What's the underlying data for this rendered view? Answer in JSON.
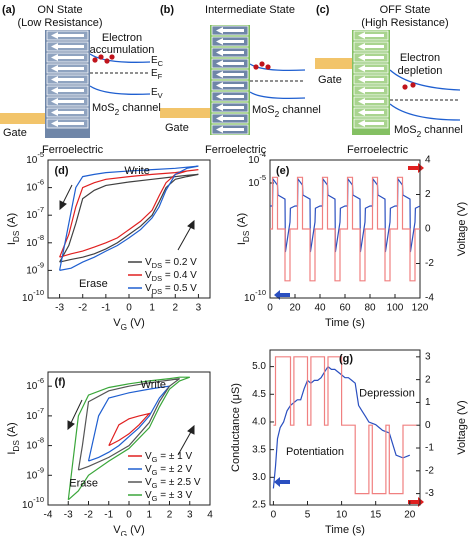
{
  "diagrams": [
    {
      "label": "(a)",
      "title": [
        "ON State",
        "(Low Resistance)"
      ],
      "note": [
        "Electron",
        "accumulation"
      ],
      "levels": [
        [
          "E",
          "C"
        ],
        [
          "E",
          "F"
        ],
        [
          "E",
          "V"
        ]
      ],
      "channel": [
        "MoS",
        "2",
        " channel"
      ],
      "gate": "Gate",
      "layer": "Ferroelectric"
    },
    {
      "label": "(b)",
      "title": [
        "Intermediate State"
      ],
      "channel": [
        "MoS",
        "2",
        " channel"
      ],
      "gate": "Gate",
      "layer": "Ferroelectric"
    },
    {
      "label": "(c)",
      "title": [
        "OFF State",
        "(High Resistance)"
      ],
      "note": [
        "Electron",
        "depletion"
      ],
      "channel": [
        "MoS",
        "2",
        " channel"
      ],
      "gate": "Gate",
      "layer": "Ferroelectric"
    }
  ],
  "chart_data": [
    {
      "type": "line",
      "label": "(d)",
      "x_label": [
        "V",
        "G",
        " (V)"
      ],
      "y_label": [
        "I",
        "DS",
        " (A)"
      ],
      "xlim": [
        -3.5,
        3.5
      ],
      "xticks": [
        -3,
        -2,
        -1,
        0,
        1,
        2,
        3
      ],
      "ylim": [
        1e-10,
        1e-05
      ],
      "yscale": "log",
      "yticks": [
        {
          "value": 1e-10,
          "label": [
            "10",
            "-10"
          ]
        },
        {
          "value": 1e-09,
          "label": [
            "10",
            "-9"
          ]
        },
        {
          "value": 1e-08,
          "label": [
            "10",
            "-8"
          ]
        },
        {
          "value": 1e-07,
          "label": [
            "10",
            "-7"
          ]
        },
        {
          "value": 1e-06,
          "label": [
            "10",
            "-6"
          ]
        },
        {
          "value": 1e-05,
          "label": [
            "10",
            "-5"
          ]
        }
      ],
      "annotations": [
        "Write",
        "Erase"
      ],
      "legend": "lower right",
      "series": [
        {
          "name": [
            "V",
            "DS",
            " = 0.2 V"
          ],
          "color": "#404040",
          "x": [
            -3,
            -2.5,
            -2,
            -1.5,
            -1,
            -0.5,
            0,
            0.5,
            1,
            1.3,
            1.6,
            2,
            2.5,
            3,
            2.5,
            2,
            1,
            0,
            -1,
            -1.5,
            -2,
            -2.3,
            -2.6,
            -3
          ],
          "values": [
            2e-09,
            2.5e-09,
            3e-09,
            4e-09,
            6e-09,
            1e-08,
            2e-08,
            4e-08,
            1e-07,
            3e-07,
            1e-06,
            2e-06,
            2.5e-06,
            3e-06,
            2.8e-06,
            2.5e-06,
            2e-06,
            1.6e-06,
            1.2e-06,
            8e-07,
            4e-07,
            5e-08,
            8e-09,
            2e-09
          ]
        },
        {
          "name": [
            "V",
            "DS",
            " = 0.4 V"
          ],
          "color": "#e02020",
          "x": [
            -3,
            -2.5,
            -2,
            -1.5,
            -1,
            -0.5,
            0,
            0.5,
            1,
            1.3,
            1.6,
            2,
            2.5,
            3,
            2.5,
            2,
            1,
            0,
            -1,
            -1.5,
            -2,
            -2.3,
            -2.6,
            -3
          ],
          "values": [
            3e-09,
            4e-09,
            5e-09,
            7e-09,
            1e-08,
            1.5e-08,
            3e-08,
            6e-08,
            1.5e-07,
            5e-07,
            1.5e-06,
            3e-06,
            4e-06,
            4.5e-06,
            4e-06,
            3.5e-06,
            3e-06,
            2.5e-06,
            2e-06,
            1.5e-06,
            1e-06,
            2e-07,
            2e-08,
            3e-09
          ]
        },
        {
          "name": [
            "V",
            "DS",
            " = 0.5 V"
          ],
          "color": "#1f5fd0",
          "x": [
            -3,
            -2.5,
            -2,
            -1.5,
            -1,
            -0.5,
            0,
            0.5,
            1,
            1.3,
            1.6,
            2,
            2.5,
            3,
            2.5,
            2,
            1,
            0,
            -1,
            -1.5,
            -2,
            -2.3,
            -2.6,
            -3
          ],
          "values": [
            1e-09,
            1.2e-09,
            2e-09,
            3e-09,
            5e-09,
            8e-09,
            1.5e-08,
            3e-08,
            8e-08,
            2e-07,
            8e-07,
            3e-06,
            5e-06,
            6e-06,
            5.5e-06,
            5e-06,
            4.5e-06,
            4e-06,
            3.5e-06,
            3e-06,
            2.5e-06,
            1e-06,
            5e-08,
            1e-09
          ]
        }
      ]
    },
    {
      "type": "line",
      "label": "(e)",
      "x_label": "Time (s)",
      "y_label": [
        "I",
        "DS",
        " (A)"
      ],
      "y2_label": "Voltage (V)",
      "xlim": [
        0,
        120
      ],
      "xticks": [
        0,
        20,
        40,
        60,
        80,
        100,
        120
      ],
      "ylim": [
        1e-10,
        0.0001
      ],
      "yscale": "log",
      "yticks": [
        {
          "value": 1e-10,
          "label": [
            "10",
            "-10"
          ]
        },
        {
          "value": 1e-05,
          "label": [
            "10",
            "-5"
          ]
        },
        {
          "value": 0.0001,
          "label": [
            "10",
            "-4"
          ]
        }
      ],
      "y2lim": [
        -4,
        4
      ],
      "y2ticks": [
        -4,
        -2,
        0,
        2,
        4
      ],
      "series": [
        {
          "color": "#2a4fc0",
          "x": [
            0,
            2,
            2.3,
            6,
            6.3,
            12,
            12.3,
            16,
            16.3,
            20,
            22,
            22.3,
            26,
            26.3,
            32,
            32.3,
            36,
            36.3,
            40,
            42,
            42.3,
            46,
            46.3,
            52,
            52.3,
            56,
            56.3,
            60,
            62,
            62.3,
            66,
            66.3,
            72,
            72.3,
            76,
            76.3,
            80,
            82,
            82.3,
            86,
            86.3,
            92,
            92.3,
            96,
            96.3,
            100,
            102,
            102.3,
            106,
            106.3,
            112,
            112.3,
            116,
            116.3,
            120
          ],
          "values": [
            1e-06,
            1e-06,
            1.5e-05,
            8e-06,
            3e-06,
            2e-06,
            1e-08,
            2e-07,
            8e-07,
            1e-06,
            1e-06,
            1.5e-05,
            8e-06,
            3e-06,
            2e-06,
            1e-08,
            2e-07,
            8e-07,
            1e-06,
            1e-06,
            1.5e-05,
            8e-06,
            3e-06,
            2e-06,
            1e-08,
            2e-07,
            8e-07,
            1e-06,
            1e-06,
            1.5e-05,
            8e-06,
            3e-06,
            2e-06,
            1e-08,
            2e-07,
            8e-07,
            1e-06,
            1e-06,
            1.5e-05,
            8e-06,
            3e-06,
            2e-06,
            1e-08,
            2e-07,
            8e-07,
            1e-06,
            1e-06,
            1.5e-05,
            8e-06,
            3e-06,
            2e-06,
            1e-08,
            2e-07,
            8e-07,
            1e-06
          ]
        },
        {
          "color": "#f08080",
          "axis": "y2",
          "x": [
            0,
            2,
            2,
            6,
            6,
            12,
            12,
            16,
            16,
            20,
            22,
            22,
            26,
            26,
            32,
            32,
            36,
            36,
            40,
            42,
            42,
            46,
            46,
            52,
            52,
            56,
            56,
            60,
            62,
            62,
            66,
            66,
            72,
            72,
            76,
            76,
            80,
            82,
            82,
            86,
            86,
            92,
            92,
            96,
            96,
            100,
            102,
            102,
            106,
            106,
            112,
            112,
            116,
            116,
            120
          ],
          "values": [
            0,
            0,
            3,
            3,
            0,
            0,
            -3,
            -3,
            0,
            0,
            0,
            3,
            3,
            0,
            0,
            -3,
            -3,
            0,
            0,
            0,
            3,
            3,
            0,
            0,
            -3,
            -3,
            0,
            0,
            0,
            3,
            3,
            0,
            0,
            -3,
            -3,
            0,
            0,
            0,
            3,
            3,
            0,
            0,
            -3,
            -3,
            0,
            0,
            0,
            3,
            3,
            0,
            0,
            -3,
            -3,
            0,
            0
          ]
        }
      ]
    },
    {
      "type": "line",
      "label": "(f)",
      "x_label": [
        "V",
        "G",
        " (V)"
      ],
      "y_label": [
        "I",
        "DS",
        " (A)"
      ],
      "xlim": [
        -4,
        4
      ],
      "xticks": [
        -4,
        -3,
        -2,
        -1,
        0,
        1,
        2,
        3,
        4
      ],
      "ylim": [
        1e-10,
        3e-06
      ],
      "yscale": "log",
      "yticks": [
        {
          "value": 1e-10,
          "label": [
            "10",
            "-10"
          ]
        },
        {
          "value": 1e-09,
          "label": [
            "10",
            "-9"
          ]
        },
        {
          "value": 1e-08,
          "label": [
            "10",
            "-8"
          ]
        },
        {
          "value": 1e-07,
          "label": [
            "10",
            "-7"
          ]
        },
        {
          "value": 1e-06,
          "label": [
            "10",
            "-6"
          ]
        }
      ],
      "annotations": [
        "Write",
        "Erase"
      ],
      "legend": "lower right",
      "series": [
        {
          "name": [
            "V",
            "G",
            " = ± 1 V"
          ],
          "color": "#e02020",
          "x": [
            -1,
            -0.5,
            0,
            0.5,
            1,
            0.5,
            0,
            -0.5,
            -1
          ],
          "values": [
            1e-08,
            1.5e-08,
            2.5e-08,
            5e-08,
            1.2e-07,
            1e-07,
            8e-08,
            5e-08,
            1e-08
          ]
        },
        {
          "name": [
            "V",
            "G",
            " = ± 2 V"
          ],
          "color": "#1f5fd0",
          "x": [
            -2,
            -1.5,
            -1,
            -0.5,
            0,
            0.5,
            1,
            1.5,
            2,
            1.5,
            1,
            0,
            -1,
            -1.5,
            -2
          ],
          "values": [
            3e-09,
            4e-09,
            6e-09,
            1e-08,
            2e-08,
            4e-08,
            1e-07,
            4e-07,
            1e-06,
            9e-07,
            8e-07,
            6e-07,
            4e-07,
            1e-07,
            3e-09
          ]
        },
        {
          "name": [
            "V",
            "G",
            " = ± 2.5 V"
          ],
          "color": "#555555",
          "x": [
            -2.5,
            -2,
            -1,
            0,
            1,
            1.5,
            2,
            2.5,
            2,
            1,
            0,
            -1,
            -2,
            -2.3,
            -2.5
          ],
          "values": [
            1.5e-09,
            2e-09,
            4e-09,
            1e-08,
            6e-08,
            3e-07,
            1e-06,
            1.8e-06,
            1.6e-06,
            1.3e-06,
            1e-06,
            7e-07,
            3e-07,
            1e-08,
            1.5e-09
          ]
        },
        {
          "name": [
            "V",
            "G",
            " = ± 3 V"
          ],
          "color": "#3aa63a",
          "x": [
            -3,
            -2.5,
            -2,
            -1,
            0,
            1,
            1.5,
            2,
            2.5,
            3,
            2.5,
            2,
            1,
            0,
            -1,
            -2,
            -2.5,
            -2.8,
            -3
          ],
          "values": [
            1.5e-10,
            3e-10,
            1e-09,
            3e-09,
            8e-09,
            4e-08,
            2e-07,
            8e-07,
            1.5e-06,
            2e-06,
            2e-06,
            1.8e-06,
            1.5e-06,
            1.2e-06,
            9e-07,
            5e-07,
            1e-07,
            2e-09,
            1.5e-10
          ]
        }
      ]
    },
    {
      "type": "line",
      "label": "(g)",
      "x_label": "Time (s)",
      "y_label": "Conductance (μS)",
      "y2_label": "Voltage (V)",
      "xlim": [
        -0.5,
        21.5
      ],
      "xticks": [
        0,
        5,
        10,
        15,
        20
      ],
      "ylim": [
        2.5,
        5.3
      ],
      "yticks": [
        2.5,
        {
          "value": 3,
          "label": "3.0"
        },
        3.5,
        {
          "value": 4,
          "label": "4.0"
        },
        4.5,
        {
          "value": 5,
          "label": "5.0"
        }
      ],
      "y2lim": [
        -3.5,
        3.3
      ],
      "y2ticks": [
        -3,
        -2,
        -1,
        0,
        1,
        2,
        3
      ],
      "annotations": [
        "Depression",
        "Potentiation"
      ],
      "series": [
        {
          "color": "#2a4fc0",
          "x": [
            0,
            0.3,
            0.6,
            1,
            1.5,
            2,
            2.5,
            3,
            3.5,
            4,
            4.5,
            5,
            5.5,
            6,
            6.5,
            7,
            7.5,
            8,
            8.5,
            9,
            9.5,
            10,
            10.5,
            11,
            11.5,
            12,
            12.5,
            13,
            13.5,
            14,
            15,
            15.5,
            16,
            17,
            17.5,
            18,
            19,
            20
          ],
          "values": [
            2.8,
            3.2,
            3.7,
            3.9,
            4.0,
            4.2,
            4.3,
            4.35,
            4.4,
            4.4,
            4.6,
            4.75,
            4.7,
            4.75,
            4.75,
            4.8,
            4.9,
            5.0,
            4.95,
            4.95,
            4.9,
            4.85,
            4.8,
            4.8,
            4.75,
            4.7,
            4.3,
            4.2,
            4.1,
            4.0,
            3.95,
            3.9,
            3.85,
            3.8,
            3.6,
            3.4,
            3.35,
            3.4
          ]
        },
        {
          "color": "#f08080",
          "axis": "y2",
          "x": [
            0,
            0.3,
            0.3,
            2.5,
            2.5,
            3,
            3,
            5,
            5,
            5.5,
            5.5,
            7.5,
            7.5,
            8,
            8,
            10,
            10,
            12,
            12,
            14,
            14,
            14.5,
            14.5,
            16.5,
            16.5,
            17,
            17,
            19,
            19,
            21
          ],
          "values": [
            0,
            0,
            3,
            3,
            0,
            0,
            3,
            3,
            0,
            0,
            3,
            3,
            0,
            0,
            3,
            3,
            0,
            0,
            -3,
            -3,
            0,
            0,
            -3,
            -3,
            0,
            0,
            -3,
            -3,
            0,
            0
          ]
        }
      ]
    }
  ]
}
